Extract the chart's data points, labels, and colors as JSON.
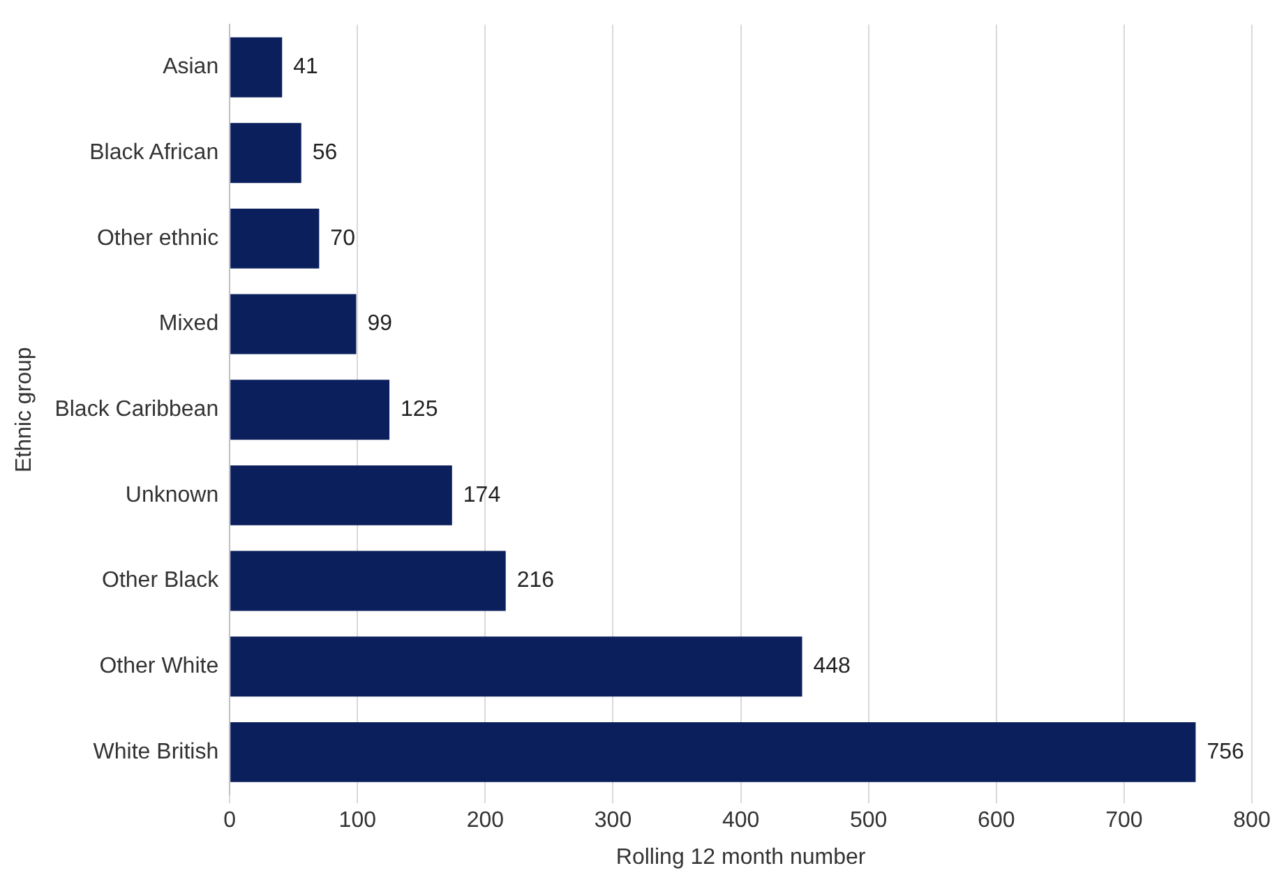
{
  "chart_data": {
    "type": "bar",
    "orientation": "horizontal",
    "xlabel": "Rolling 12 month number",
    "ylabel": "Ethnic group",
    "categories": [
      "Asian",
      "Black African",
      "Other ethnic",
      "Mixed",
      "Black Caribbean",
      "Unknown",
      "Other Black",
      "Other White",
      "White British"
    ],
    "values": [
      41,
      56,
      70,
      99,
      125,
      174,
      216,
      448,
      756
    ],
    "color": "#0b1f5c",
    "xlim": [
      0,
      800
    ],
    "xticks": [
      0,
      100,
      200,
      300,
      400,
      500,
      600,
      700,
      800
    ],
    "grid": "x",
    "data_labels": true,
    "legend": false
  }
}
